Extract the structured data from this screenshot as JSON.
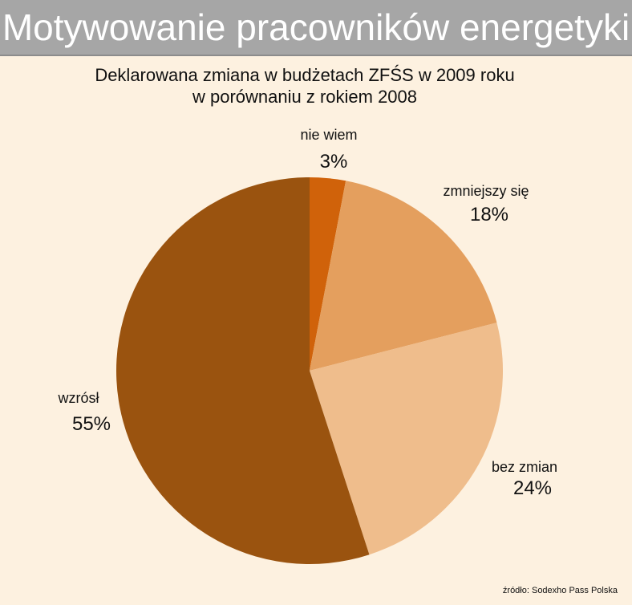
{
  "header": {
    "title": "Motywowanie pracowników energetyki"
  },
  "subtitle": {
    "line1": "Deklarowana zmiana w budżetach ZFŚS w 2009 roku",
    "line2": "w porównaniu z rokiem 2008"
  },
  "source": "źródło: Sodexho Pass Polska",
  "colors": {
    "background": "#fdf1e0",
    "banner": "#a6a6a6"
  },
  "chart_data": {
    "type": "pie",
    "slices": [
      {
        "label": "nie wiem",
        "pct_label": "3%",
        "value": 3,
        "color": "#d0620a"
      },
      {
        "label": "zmniejszy się",
        "pct_label": "18%",
        "value": 18,
        "color": "#e49f5e"
      },
      {
        "label": "bez zmian",
        "pct_label": "24%",
        "value": 24,
        "color": "#efbd8c"
      },
      {
        "label": "wzrósł",
        "pct_label": "55%",
        "value": 55,
        "color": "#9a530f"
      }
    ]
  }
}
